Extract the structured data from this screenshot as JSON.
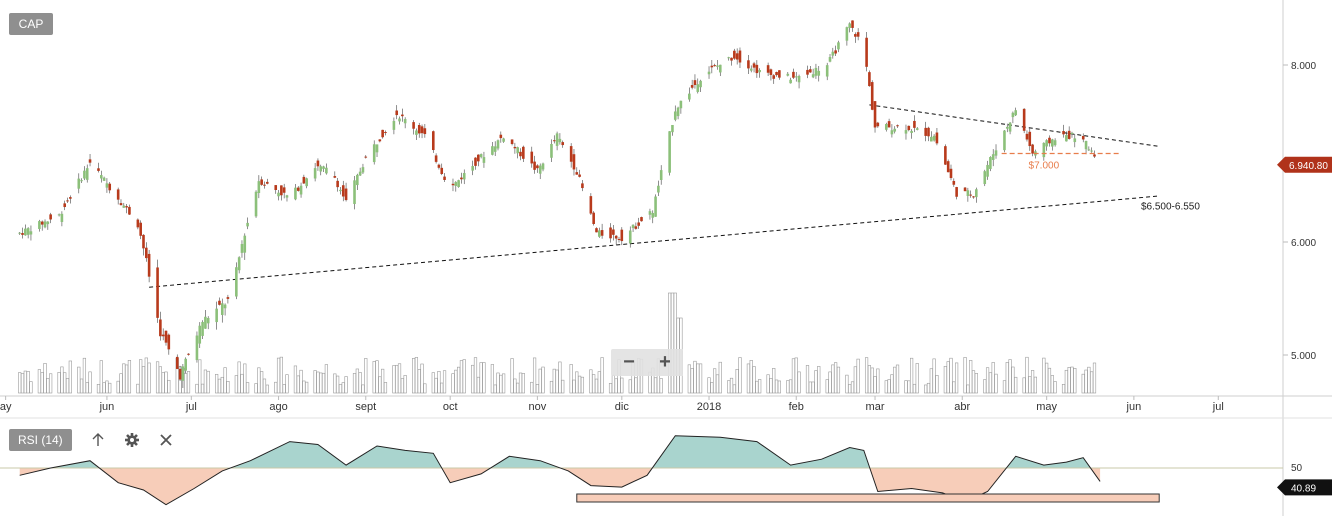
{
  "ticker": "CAP",
  "rsi_label": "RSI (14)",
  "colors": {
    "up": "#8cc07a",
    "down": "#b83a1c",
    "last_price": "#b0321a",
    "rsi_above": "#a9d4ce",
    "rsi_below": "#f7cdb9",
    "support_dash": "#e87d4b"
  },
  "icons": [
    "arrow-up-icon",
    "gear-icon",
    "close-icon"
  ],
  "zoom": {
    "minus": "−",
    "plus": "+"
  },
  "chart_data": {
    "type": "candlestick",
    "title": "CAP",
    "price_axis": {
      "ticks": [
        "8.000",
        "6.000",
        "5.000"
      ],
      "range": [
        4.7,
        8.55
      ]
    },
    "x_axis": {
      "labels": [
        "ay",
        "jun",
        "jul",
        "ago",
        "sept",
        "oct",
        "nov",
        "dic",
        "2018",
        "feb",
        "mar",
        "abr",
        "may",
        "jun",
        "jul"
      ]
    },
    "last_price": {
      "label": "6.940.80",
      "value": 6.94
    },
    "annotations": [
      {
        "text": "$7.000",
        "value": 7.0
      },
      {
        "text": "$6.500-6.550",
        "value": 6.525
      }
    ],
    "trendlines": [
      {
        "name": "support",
        "from": {
          "date": "2017-06-16",
          "value": 5.6
        },
        "to": {
          "date": "2018-06-10",
          "value": 6.52
        }
      },
      {
        "name": "resistance",
        "from": {
          "date": "2018-02-27",
          "value": 7.55
        },
        "to": {
          "date": "2018-06-10",
          "value": 7.08
        }
      }
    ],
    "price_path": [
      {
        "date": "2017-05-01",
        "value": 6.1
      },
      {
        "date": "2017-05-15",
        "value": 6.3
      },
      {
        "date": "2017-05-26",
        "value": 6.9
      },
      {
        "date": "2017-06-05",
        "value": 6.5
      },
      {
        "date": "2017-06-12",
        "value": 6.2
      },
      {
        "date": "2017-06-20",
        "value": 5.2
      },
      {
        "date": "2017-06-27",
        "value": 4.82
      },
      {
        "date": "2017-07-05",
        "value": 5.3
      },
      {
        "date": "2017-07-15",
        "value": 5.5
      },
      {
        "date": "2017-07-25",
        "value": 6.7
      },
      {
        "date": "2017-08-05",
        "value": 6.5
      },
      {
        "date": "2017-08-14",
        "value": 6.85
      },
      {
        "date": "2017-08-20",
        "value": 6.8
      },
      {
        "date": "2017-08-25",
        "value": 6.45
      },
      {
        "date": "2017-09-01",
        "value": 6.95
      },
      {
        "date": "2017-09-12",
        "value": 7.45
      },
      {
        "date": "2017-09-22",
        "value": 7.2
      },
      {
        "date": "2017-10-01",
        "value": 6.6
      },
      {
        "date": "2017-10-10",
        "value": 6.9
      },
      {
        "date": "2017-10-20",
        "value": 7.2
      },
      {
        "date": "2017-11-01",
        "value": 6.8
      },
      {
        "date": "2017-11-08",
        "value": 7.2
      },
      {
        "date": "2017-11-15",
        "value": 6.8
      },
      {
        "date": "2017-11-22",
        "value": 6.1
      },
      {
        "date": "2017-12-01",
        "value": 6.05
      },
      {
        "date": "2017-12-12",
        "value": 6.35
      },
      {
        "date": "2017-12-20",
        "value": 7.5
      },
      {
        "date": "2017-12-30",
        "value": 7.9
      },
      {
        "date": "2018-01-10",
        "value": 8.1
      },
      {
        "date": "2018-01-20",
        "value": 7.9
      },
      {
        "date": "2018-02-01",
        "value": 7.85
      },
      {
        "date": "2018-02-12",
        "value": 8.0
      },
      {
        "date": "2018-02-20",
        "value": 8.45
      },
      {
        "date": "2018-02-25",
        "value": 8.2
      },
      {
        "date": "2018-03-01",
        "value": 7.3
      },
      {
        "date": "2018-03-12",
        "value": 7.3
      },
      {
        "date": "2018-03-22",
        "value": 7.2
      },
      {
        "date": "2018-03-30",
        "value": 6.55
      },
      {
        "date": "2018-04-05",
        "value": 6.55
      },
      {
        "date": "2018-04-12",
        "value": 7.0
      },
      {
        "date": "2018-04-20",
        "value": 7.5
      },
      {
        "date": "2018-04-26",
        "value": 7.0
      },
      {
        "date": "2018-05-05",
        "value": 7.2
      },
      {
        "date": "2018-05-12",
        "value": 7.2
      },
      {
        "date": "2018-05-20",
        "value": 6.94
      }
    ],
    "volume_peaks": [
      {
        "date": "2017-12-18",
        "value": 1.0
      },
      {
        "date": "2017-12-22",
        "value": 0.75
      }
    ],
    "rsi": {
      "label": "RSI (14)",
      "level_label": "50",
      "level": 50,
      "last_label": "40.89",
      "last_value": 40.89,
      "range": [
        20,
        80
      ],
      "path": [
        {
          "date": "2017-05-01",
          "value": 45
        },
        {
          "date": "2017-05-12",
          "value": 50
        },
        {
          "date": "2017-05-26",
          "value": 55
        },
        {
          "date": "2017-06-05",
          "value": 40
        },
        {
          "date": "2017-06-14",
          "value": 35
        },
        {
          "date": "2017-06-22",
          "value": 25
        },
        {
          "date": "2017-07-02",
          "value": 36
        },
        {
          "date": "2017-07-12",
          "value": 48
        },
        {
          "date": "2017-07-22",
          "value": 55
        },
        {
          "date": "2017-08-05",
          "value": 68
        },
        {
          "date": "2017-08-15",
          "value": 66
        },
        {
          "date": "2017-08-25",
          "value": 52
        },
        {
          "date": "2017-09-05",
          "value": 65
        },
        {
          "date": "2017-09-15",
          "value": 62
        },
        {
          "date": "2017-09-25",
          "value": 60
        },
        {
          "date": "2017-10-01",
          "value": 40
        },
        {
          "date": "2017-10-12",
          "value": 46
        },
        {
          "date": "2017-10-22",
          "value": 58
        },
        {
          "date": "2017-11-02",
          "value": 55
        },
        {
          "date": "2017-11-12",
          "value": 48
        },
        {
          "date": "2017-11-20",
          "value": 38
        },
        {
          "date": "2017-12-01",
          "value": 37
        },
        {
          "date": "2017-12-10",
          "value": 45
        },
        {
          "date": "2017-12-20",
          "value": 72
        },
        {
          "date": "2018-01-05",
          "value": 71
        },
        {
          "date": "2018-01-18",
          "value": 68
        },
        {
          "date": "2018-01-30",
          "value": 52
        },
        {
          "date": "2018-02-10",
          "value": 56
        },
        {
          "date": "2018-02-20",
          "value": 64
        },
        {
          "date": "2018-02-25",
          "value": 62
        },
        {
          "date": "2018-03-02",
          "value": 34
        },
        {
          "date": "2018-03-14",
          "value": 36
        },
        {
          "date": "2018-03-25",
          "value": 33
        },
        {
          "date": "2018-04-02",
          "value": 27
        },
        {
          "date": "2018-04-10",
          "value": 34
        },
        {
          "date": "2018-04-20",
          "value": 58
        },
        {
          "date": "2018-04-30",
          "value": 52
        },
        {
          "date": "2018-05-08",
          "value": 54
        },
        {
          "date": "2018-05-14",
          "value": 57
        },
        {
          "date": "2018-05-20",
          "value": 40.89
        }
      ]
    },
    "highlight_band": {
      "from": "2017-11-15",
      "to": "2018-06-10"
    }
  }
}
